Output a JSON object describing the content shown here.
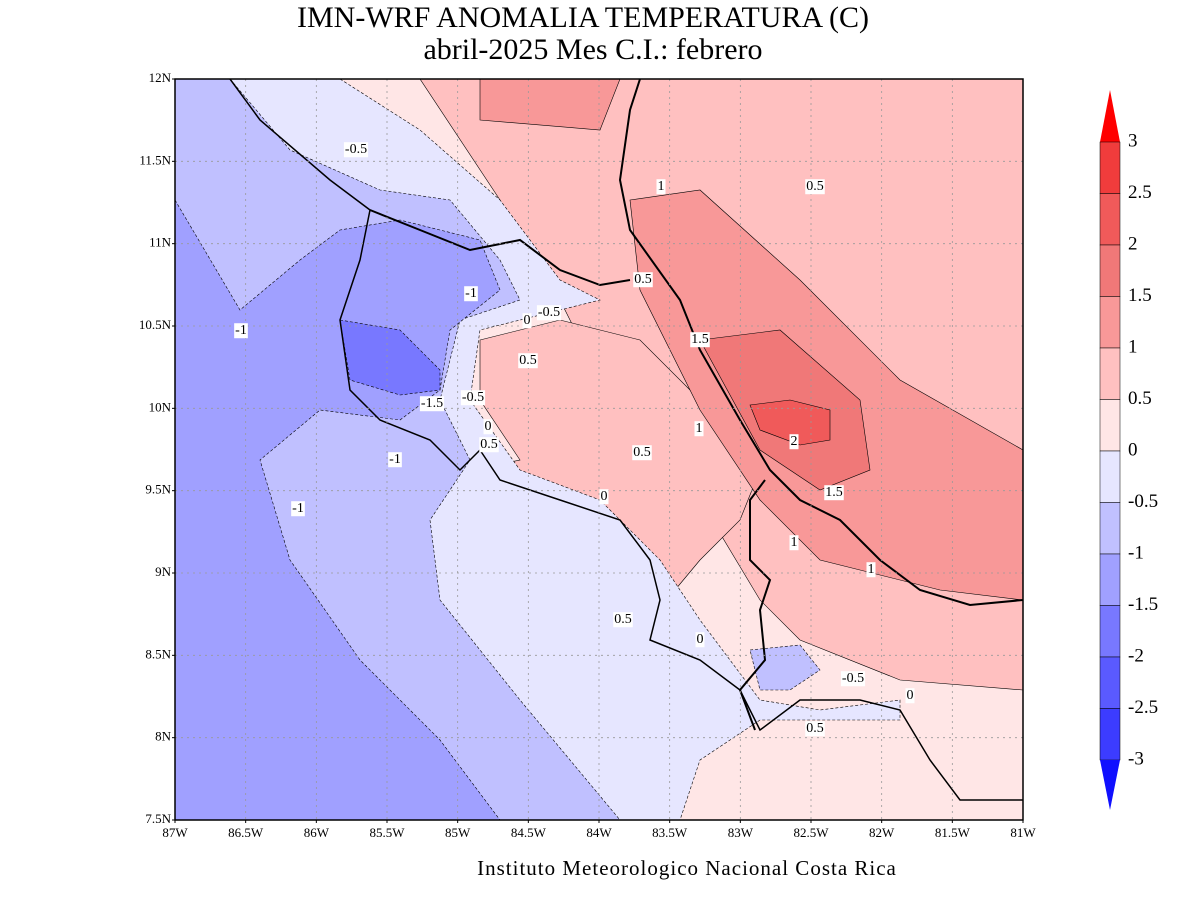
{
  "title": [
    "IMN-WRF  ANOMALIA TEMPERATURA (C)",
    "abril-2025 Mes C.I.: febrero"
  ],
  "lat_labels": [
    "12N",
    "11.5N",
    "11N",
    "10.5N",
    "10N",
    "9.5N",
    "9N",
    "8.5N",
    "8N",
    "7.5N"
  ],
  "lon_labels": [
    "87W",
    "86.5W",
    "86W",
    "85.5W",
    "85W",
    "84.5W",
    "84W",
    "83.5W",
    "83W",
    "82.5W",
    "82W",
    "81.5W",
    "81W"
  ],
  "colorbar": {
    "labels": [
      "3",
      "2.5",
      "2",
      "1.5",
      "1",
      "0.5",
      "0",
      "-0.5",
      "-1",
      "-1.5",
      "-2",
      "-2.5",
      "-3"
    ],
    "colors": [
      "#ff0000",
      "#f03c3c",
      "#f05a5a",
      "#f07878",
      "#f89898",
      "#ffc0c0",
      "#ffe6e6",
      "#e6e6ff",
      "#c0c0ff",
      "#a0a0ff",
      "#7878ff",
      "#5a5aff",
      "#3c3cff",
      "#1010ff"
    ]
  },
  "contour_labels": [
    "-0.5",
    "1",
    "0.5",
    "0.5",
    "-1",
    "0",
    "-0.5",
    "-1",
    "1.5",
    "0.5",
    "-1.5",
    "-0.5",
    "0",
    "1",
    "0.5",
    "2",
    "0.5",
    "-1",
    "0",
    "1.5",
    "-1",
    "1",
    "1",
    "0.5",
    "0",
    "-0.5",
    "0",
    "0.5"
  ],
  "footer": "Instituto Meteorologico Nacional Costa Rica"
}
